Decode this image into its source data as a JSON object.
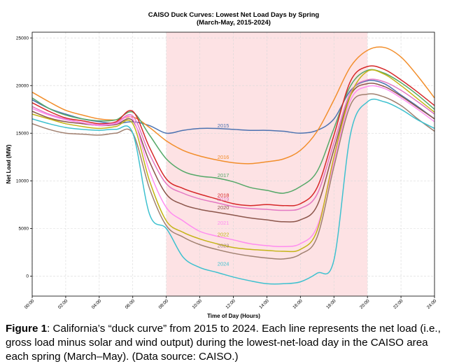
{
  "chart_data": {
    "type": "line",
    "title": "CAISO Duck Curves: Lowest Net Load Days by Spring",
    "subtitle": "(March-May, 2015-2024)",
    "xlabel": "Time of Day (Hours)",
    "ylabel": "Net Load (MW)",
    "xlim": [
      0,
      24
    ],
    "ylim": [
      -2100,
      25600
    ],
    "x_ticks": [
      {
        "v": 0,
        "label": "00:00"
      },
      {
        "v": 2,
        "label": "02:00"
      },
      {
        "v": 4,
        "label": "04:00"
      },
      {
        "v": 6,
        "label": "06:00"
      },
      {
        "v": 8,
        "label": "08:00"
      },
      {
        "v": 10,
        "label": "10:00"
      },
      {
        "v": 12,
        "label": "12:00"
      },
      {
        "v": 14,
        "label": "14:00"
      },
      {
        "v": 16,
        "label": "16:00"
      },
      {
        "v": 18,
        "label": "18:00"
      },
      {
        "v": 20,
        "label": "20:00"
      },
      {
        "v": 22,
        "label": "22:00"
      },
      {
        "v": 24,
        "label": "24:00"
      }
    ],
    "y_ticks": [
      {
        "v": 0,
        "label": "0"
      },
      {
        "v": 5000,
        "label": "5000"
      },
      {
        "v": 10000,
        "label": "10000"
      },
      {
        "v": 15000,
        "label": "15000"
      },
      {
        "v": 20000,
        "label": "20000"
      },
      {
        "v": 25000,
        "label": "25000"
      }
    ],
    "grid": true,
    "shaded_region": {
      "x_start": 8,
      "x_end": 20,
      "color": "#fde2e4"
    },
    "series": [
      {
        "name": "2015",
        "color": "#4c72b0",
        "label_pos": [
          11.4,
          15600
        ],
        "x": [
          0,
          1,
          2,
          3,
          4,
          5,
          6,
          7,
          8,
          9,
          10,
          11,
          12,
          13,
          14,
          15,
          16,
          17,
          18,
          19,
          20,
          21,
          22,
          23,
          24
        ],
        "values": [
          18500,
          17600,
          17000,
          16500,
          16200,
          16000,
          16200,
          15800,
          15000,
          15300,
          15500,
          15500,
          15400,
          15300,
          15300,
          15200,
          15000,
          15300,
          16500,
          19500,
          20500,
          20200,
          19000,
          17800,
          16500
        ]
      },
      {
        "name": "2016",
        "color": "#f28e2b",
        "label_pos": [
          11.4,
          12300
        ],
        "x": [
          0,
          1,
          2,
          3,
          4,
          5,
          6,
          7,
          8,
          9,
          10,
          11,
          12,
          13,
          14,
          15,
          16,
          17,
          18,
          19,
          20,
          21,
          22,
          23,
          24
        ],
        "values": [
          19300,
          18300,
          17400,
          16900,
          16500,
          16400,
          16700,
          15600,
          14200,
          13200,
          12600,
          12200,
          11900,
          11800,
          12000,
          12300,
          13200,
          15200,
          18500,
          22000,
          23700,
          24000,
          23000,
          21000,
          18700
        ]
      },
      {
        "name": "2017",
        "color": "#55a868",
        "label_pos": [
          11.4,
          10400
        ],
        "x": [
          0,
          1,
          2,
          3,
          4,
          5,
          6,
          7,
          8,
          9,
          10,
          11,
          12,
          13,
          14,
          15,
          16,
          17,
          18,
          19,
          20,
          21,
          22,
          23,
          24
        ],
        "values": [
          18700,
          17600,
          16900,
          16500,
          16300,
          16400,
          17200,
          14800,
          12300,
          11000,
          10500,
          10300,
          9900,
          9300,
          9000,
          8700,
          9400,
          11000,
          15500,
          20000,
          21600,
          21300,
          20300,
          19000,
          17500
        ]
      },
      {
        "name": "2018",
        "color": "#d62728",
        "label_pos": [
          11.4,
          8300
        ],
        "x": [
          0,
          1,
          2,
          3,
          4,
          5,
          6,
          7,
          8,
          9,
          10,
          11,
          12,
          13,
          14,
          15,
          16,
          17,
          18,
          19,
          20,
          21,
          22,
          23,
          24
        ],
        "values": [
          18200,
          17300,
          16600,
          16300,
          16000,
          16200,
          17300,
          13500,
          10200,
          9200,
          8600,
          8100,
          7600,
          7400,
          7500,
          7400,
          7600,
          9300,
          14800,
          20500,
          22000,
          21700,
          20600,
          19300,
          17900
        ]
      },
      {
        "name": "2019",
        "color": "#e377c2",
        "label_pos": [
          11.4,
          7900
        ],
        "x": [
          0,
          1,
          2,
          3,
          4,
          5,
          6,
          7,
          8,
          9,
          10,
          11,
          12,
          13,
          14,
          15,
          16,
          17,
          18,
          19,
          20,
          21,
          22,
          23,
          24
        ],
        "values": [
          17800,
          17000,
          16500,
          16100,
          15900,
          16100,
          16800,
          12800,
          9700,
          8700,
          8100,
          7700,
          7300,
          7100,
          7000,
          6900,
          7100,
          8600,
          14000,
          19300,
          20600,
          20400,
          19500,
          18300,
          17000
        ]
      },
      {
        "name": "2020",
        "color": "#8c564b",
        "label_pos": [
          11.4,
          7000
        ],
        "x": [
          0,
          1,
          2,
          3,
          4,
          5,
          6,
          7,
          8,
          9,
          10,
          11,
          12,
          13,
          14,
          15,
          16,
          17,
          18,
          19,
          20,
          21,
          22,
          23,
          24
        ],
        "values": [
          17300,
          16600,
          16200,
          16000,
          15800,
          15900,
          16300,
          12000,
          8600,
          7500,
          7000,
          6700,
          6400,
          6100,
          5900,
          5700,
          5900,
          7400,
          13300,
          19000,
          20200,
          19900,
          18900,
          17700,
          16500
        ]
      },
      {
        "name": "2021",
        "color": "#ff8cf0",
        "label_pos": [
          11.4,
          5400
        ],
        "x": [
          0,
          1,
          2,
          3,
          4,
          5,
          6,
          7,
          8,
          9,
          10,
          11,
          12,
          13,
          14,
          15,
          16,
          17,
          18,
          19,
          20,
          21,
          22,
          23,
          24
        ],
        "values": [
          17600,
          16900,
          16400,
          16100,
          15800,
          16000,
          16500,
          11000,
          7200,
          5800,
          4700,
          4200,
          3800,
          3400,
          3200,
          3100,
          3400,
          5200,
          12000,
          18500,
          19900,
          19700,
          18700,
          17500,
          16200
        ]
      },
      {
        "name": "2022",
        "color": "#c4b416",
        "label_pos": [
          11.4,
          4200
        ],
        "x": [
          0,
          1,
          2,
          3,
          4,
          5,
          6,
          7,
          8,
          9,
          10,
          11,
          12,
          13,
          14,
          15,
          16,
          17,
          18,
          19,
          20,
          21,
          22,
          23,
          24
        ],
        "values": [
          17000,
          16500,
          16000,
          15700,
          15500,
          15700,
          16000,
          10000,
          5800,
          4600,
          3900,
          3400,
          3000,
          2800,
          2700,
          2600,
          2800,
          4800,
          12500,
          19000,
          21500,
          21200,
          20000,
          18600,
          17200
        ]
      },
      {
        "name": "2023",
        "color": "#a08070",
        "label_pos": [
          11.4,
          3000
        ],
        "x": [
          0,
          1,
          2,
          3,
          4,
          5,
          6,
          7,
          8,
          9,
          10,
          11,
          12,
          13,
          14,
          15,
          16,
          17,
          18,
          19,
          20,
          21,
          22,
          23,
          24
        ],
        "values": [
          16000,
          15400,
          15000,
          14900,
          14800,
          15000,
          15000,
          9200,
          5300,
          4100,
          3300,
          2800,
          2400,
          2100,
          1900,
          1800,
          2300,
          4100,
          11500,
          18000,
          19100,
          18800,
          17900,
          16500,
          15200
        ]
      },
      {
        "name": "2024",
        "color": "#3ec1cf",
        "label_pos": [
          11.4,
          1100
        ],
        "x": [
          0,
          1,
          2,
          3,
          4,
          5,
          6,
          7,
          8,
          9,
          10,
          11,
          12,
          13,
          14,
          15,
          16,
          17,
          18,
          19,
          20,
          21,
          22,
          23,
          24
        ],
        "values": [
          16500,
          16000,
          15600,
          15400,
          15300,
          15400,
          15000,
          6500,
          5000,
          2000,
          900,
          400,
          -100,
          -500,
          -800,
          -800,
          -600,
          300,
          1700,
          15000,
          18300,
          18300,
          17500,
          16400,
          15500
        ]
      }
    ]
  },
  "caption": {
    "label": "Figure 1",
    "text": ": California’s “duck curve” from 2015 to 2024. Each line represents the net load (i.e., gross load minus solar and wind output) during the lowest-net-load day in the CAISO area each spring (March–May). (Data source: CAISO.)"
  }
}
